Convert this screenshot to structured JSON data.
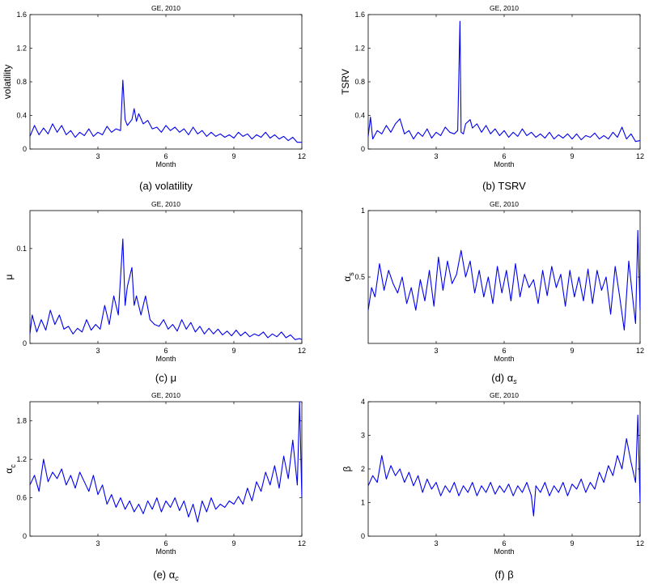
{
  "chart_data": [
    {
      "type": "line",
      "title": "GE, 2010",
      "xlabel": "Month",
      "ylabel": "volatility",
      "caption": "(a) volatility",
      "xlim": [
        0,
        12
      ],
      "ylim": [
        0,
        1.6
      ],
      "xticks": [
        "3",
        "6",
        "9",
        "12"
      ],
      "yticks": [
        "0",
        "0.4",
        "0.8",
        "1.2",
        "1.6"
      ],
      "line_color": "#0000ee",
      "series": [
        {
          "x": [
            0.0,
            0.2,
            0.4,
            0.6,
            0.8,
            1.0,
            1.2,
            1.4,
            1.6,
            1.8,
            2.0,
            2.2,
            2.4,
            2.6,
            2.8,
            3.0,
            3.2,
            3.4,
            3.6,
            3.8,
            4.0,
            4.1,
            4.2,
            4.3,
            4.5,
            4.6,
            4.7,
            4.8,
            5.0,
            5.2,
            5.4,
            5.6,
            5.8,
            6.0,
            6.2,
            6.4,
            6.6,
            6.8,
            7.0,
            7.2,
            7.4,
            7.6,
            7.8,
            8.0,
            8.2,
            8.4,
            8.6,
            8.8,
            9.0,
            9.2,
            9.4,
            9.6,
            9.8,
            10.0,
            10.2,
            10.4,
            10.6,
            10.8,
            11.0,
            11.2,
            11.4,
            11.6,
            11.8,
            12.0
          ],
          "values": [
            0.15,
            0.28,
            0.17,
            0.25,
            0.18,
            0.3,
            0.2,
            0.28,
            0.17,
            0.22,
            0.14,
            0.2,
            0.16,
            0.24,
            0.15,
            0.2,
            0.17,
            0.27,
            0.2,
            0.24,
            0.22,
            0.82,
            0.35,
            0.28,
            0.35,
            0.48,
            0.33,
            0.42,
            0.3,
            0.34,
            0.24,
            0.26,
            0.2,
            0.28,
            0.22,
            0.26,
            0.2,
            0.24,
            0.17,
            0.26,
            0.18,
            0.22,
            0.15,
            0.2,
            0.15,
            0.18,
            0.14,
            0.17,
            0.13,
            0.2,
            0.15,
            0.18,
            0.12,
            0.17,
            0.14,
            0.2,
            0.13,
            0.17,
            0.12,
            0.15,
            0.1,
            0.14,
            0.08,
            0.08
          ]
        }
      ]
    },
    {
      "type": "line",
      "title": "GE, 2010",
      "xlabel": "Month",
      "ylabel": "TSRV",
      "caption": "(b) TSRV",
      "xlim": [
        0,
        12
      ],
      "ylim": [
        0,
        1.6
      ],
      "xticks": [
        "3",
        "6",
        "9",
        "12"
      ],
      "yticks": [
        "0",
        "0.4",
        "0.8",
        "1.2",
        "1.6"
      ],
      "line_color": "#0000ee",
      "series": [
        {
          "x": [
            0.0,
            0.1,
            0.2,
            0.4,
            0.6,
            0.8,
            1.0,
            1.2,
            1.4,
            1.6,
            1.8,
            2.0,
            2.2,
            2.4,
            2.6,
            2.8,
            3.0,
            3.2,
            3.4,
            3.6,
            3.8,
            3.95,
            4.05,
            4.1,
            4.2,
            4.3,
            4.5,
            4.6,
            4.8,
            5.0,
            5.2,
            5.4,
            5.6,
            5.8,
            6.0,
            6.2,
            6.4,
            6.6,
            6.8,
            7.0,
            7.2,
            7.4,
            7.6,
            7.8,
            8.0,
            8.2,
            8.4,
            8.6,
            8.8,
            9.0,
            9.2,
            9.4,
            9.6,
            9.8,
            10.0,
            10.2,
            10.4,
            10.6,
            10.8,
            11.0,
            11.2,
            11.4,
            11.6,
            11.8,
            12.0
          ],
          "values": [
            0.15,
            0.38,
            0.12,
            0.22,
            0.18,
            0.28,
            0.2,
            0.3,
            0.36,
            0.18,
            0.22,
            0.12,
            0.2,
            0.15,
            0.24,
            0.13,
            0.2,
            0.16,
            0.26,
            0.2,
            0.18,
            0.22,
            1.52,
            0.2,
            0.18,
            0.3,
            0.35,
            0.25,
            0.3,
            0.2,
            0.28,
            0.18,
            0.24,
            0.16,
            0.22,
            0.14,
            0.2,
            0.15,
            0.24,
            0.16,
            0.2,
            0.14,
            0.18,
            0.13,
            0.2,
            0.12,
            0.17,
            0.13,
            0.18,
            0.12,
            0.18,
            0.11,
            0.16,
            0.14,
            0.19,
            0.12,
            0.16,
            0.12,
            0.2,
            0.14,
            0.26,
            0.12,
            0.18,
            0.09,
            0.1
          ]
        }
      ]
    },
    {
      "type": "line",
      "title": "GE, 2010",
      "xlabel": "Month",
      "ylabel": "μ",
      "caption": "(c) μ",
      "xlim": [
        0,
        12
      ],
      "ylim": [
        0,
        0.14
      ],
      "xticks": [
        "3",
        "6",
        "9",
        "12"
      ],
      "yticks": [
        "0",
        "0.1"
      ],
      "line_color": "#0000ee",
      "series": [
        {
          "x": [
            0.0,
            0.1,
            0.3,
            0.5,
            0.7,
            0.9,
            1.1,
            1.3,
            1.5,
            1.7,
            1.9,
            2.1,
            2.3,
            2.5,
            2.7,
            2.9,
            3.1,
            3.3,
            3.5,
            3.7,
            3.9,
            4.1,
            4.2,
            4.3,
            4.5,
            4.6,
            4.7,
            4.9,
            5.1,
            5.3,
            5.5,
            5.7,
            5.9,
            6.1,
            6.3,
            6.5,
            6.7,
            6.9,
            7.1,
            7.3,
            7.5,
            7.7,
            7.9,
            8.1,
            8.3,
            8.5,
            8.7,
            8.9,
            9.1,
            9.3,
            9.5,
            9.7,
            9.9,
            10.1,
            10.3,
            10.5,
            10.7,
            10.9,
            11.1,
            11.3,
            11.5,
            11.7,
            11.9,
            12.0
          ],
          "values": [
            0.01,
            0.03,
            0.012,
            0.025,
            0.014,
            0.035,
            0.02,
            0.03,
            0.015,
            0.018,
            0.01,
            0.016,
            0.012,
            0.025,
            0.014,
            0.02,
            0.015,
            0.04,
            0.02,
            0.05,
            0.03,
            0.11,
            0.04,
            0.06,
            0.08,
            0.04,
            0.05,
            0.03,
            0.05,
            0.025,
            0.02,
            0.018,
            0.025,
            0.015,
            0.02,
            0.013,
            0.025,
            0.015,
            0.022,
            0.012,
            0.018,
            0.01,
            0.016,
            0.01,
            0.015,
            0.009,
            0.013,
            0.008,
            0.014,
            0.008,
            0.012,
            0.007,
            0.01,
            0.008,
            0.012,
            0.006,
            0.01,
            0.007,
            0.012,
            0.006,
            0.009,
            0.004,
            0.005,
            0.004
          ]
        }
      ]
    },
    {
      "type": "line",
      "title": "GE, 2010",
      "xlabel": "Month",
      "ylabel": "αs",
      "caption": "(d) αs",
      "xlim": [
        0,
        12
      ],
      "ylim": [
        0,
        1
      ],
      "xticks": [
        "3",
        "6",
        "9",
        "12"
      ],
      "yticks": [
        "0.5",
        "1"
      ],
      "line_color": "#0000ee",
      "series": [
        {
          "x": [
            0.0,
            0.15,
            0.3,
            0.5,
            0.7,
            0.9,
            1.1,
            1.3,
            1.5,
            1.7,
            1.9,
            2.1,
            2.3,
            2.5,
            2.7,
            2.9,
            3.1,
            3.3,
            3.5,
            3.7,
            3.9,
            4.1,
            4.3,
            4.5,
            4.7,
            4.9,
            5.1,
            5.3,
            5.5,
            5.7,
            5.9,
            6.1,
            6.3,
            6.5,
            6.7,
            6.9,
            7.1,
            7.3,
            7.5,
            7.7,
            7.9,
            8.1,
            8.3,
            8.5,
            8.7,
            8.9,
            9.1,
            9.3,
            9.5,
            9.7,
            9.9,
            10.1,
            10.3,
            10.5,
            10.7,
            10.9,
            11.1,
            11.3,
            11.5,
            11.7,
            11.8,
            11.9,
            12.0
          ],
          "values": [
            0.25,
            0.42,
            0.35,
            0.6,
            0.4,
            0.55,
            0.45,
            0.38,
            0.5,
            0.3,
            0.42,
            0.25,
            0.48,
            0.32,
            0.55,
            0.28,
            0.65,
            0.4,
            0.62,
            0.45,
            0.52,
            0.7,
            0.5,
            0.62,
            0.38,
            0.55,
            0.35,
            0.5,
            0.3,
            0.58,
            0.38,
            0.55,
            0.32,
            0.6,
            0.35,
            0.52,
            0.42,
            0.48,
            0.3,
            0.55,
            0.36,
            0.58,
            0.42,
            0.52,
            0.28,
            0.55,
            0.35,
            0.5,
            0.32,
            0.56,
            0.3,
            0.55,
            0.4,
            0.5,
            0.22,
            0.58,
            0.35,
            0.1,
            0.62,
            0.3,
            0.15,
            0.85,
            0.25
          ]
        }
      ]
    },
    {
      "type": "line",
      "title": "GE, 2010",
      "xlabel": "Month",
      "ylabel": "αc",
      "caption": "(e) αc",
      "xlim": [
        0,
        12
      ],
      "ylim": [
        0,
        2.1
      ],
      "xticks": [
        "3",
        "6",
        "9",
        "12"
      ],
      "yticks": [
        "0",
        "0.6",
        "1.2",
        "1.8"
      ],
      "line_color": "#0000ee",
      "series": [
        {
          "x": [
            0.0,
            0.2,
            0.4,
            0.6,
            0.8,
            1.0,
            1.2,
            1.4,
            1.6,
            1.8,
            2.0,
            2.2,
            2.4,
            2.6,
            2.8,
            3.0,
            3.2,
            3.4,
            3.6,
            3.8,
            4.0,
            4.2,
            4.4,
            4.6,
            4.8,
            5.0,
            5.2,
            5.4,
            5.6,
            5.8,
            6.0,
            6.2,
            6.4,
            6.6,
            6.8,
            7.0,
            7.2,
            7.4,
            7.6,
            7.8,
            8.0,
            8.2,
            8.4,
            8.6,
            8.8,
            9.0,
            9.2,
            9.4,
            9.6,
            9.8,
            10.0,
            10.2,
            10.4,
            10.6,
            10.8,
            11.0,
            11.2,
            11.4,
            11.6,
            11.8,
            11.9,
            12.0
          ],
          "values": [
            0.8,
            0.95,
            0.7,
            1.2,
            0.85,
            1.0,
            0.9,
            1.05,
            0.8,
            0.95,
            0.75,
            1.0,
            0.85,
            0.7,
            0.95,
            0.65,
            0.8,
            0.5,
            0.65,
            0.45,
            0.6,
            0.42,
            0.55,
            0.38,
            0.5,
            0.35,
            0.55,
            0.42,
            0.6,
            0.38,
            0.55,
            0.45,
            0.6,
            0.4,
            0.55,
            0.3,
            0.5,
            0.22,
            0.55,
            0.38,
            0.6,
            0.42,
            0.5,
            0.45,
            0.55,
            0.5,
            0.62,
            0.5,
            0.75,
            0.55,
            0.85,
            0.7,
            1.0,
            0.8,
            1.1,
            0.75,
            1.25,
            0.9,
            1.5,
            0.8,
            2.1,
            0.6
          ]
        }
      ]
    },
    {
      "type": "line",
      "title": "GE, 2010",
      "xlabel": "Month",
      "ylabel": "β",
      "caption": "(f) β",
      "xlim": [
        0,
        12
      ],
      "ylim": [
        0,
        4
      ],
      "xticks": [
        "3",
        "6",
        "9",
        "12"
      ],
      "yticks": [
        "0",
        "1",
        "2",
        "3",
        "4"
      ],
      "line_color": "#0000ee",
      "series": [
        {
          "x": [
            0.0,
            0.2,
            0.4,
            0.6,
            0.8,
            1.0,
            1.2,
            1.4,
            1.6,
            1.8,
            2.0,
            2.2,
            2.4,
            2.6,
            2.8,
            3.0,
            3.2,
            3.4,
            3.6,
            3.8,
            4.0,
            4.2,
            4.4,
            4.6,
            4.8,
            5.0,
            5.2,
            5.4,
            5.6,
            5.8,
            6.0,
            6.2,
            6.4,
            6.6,
            6.8,
            7.0,
            7.2,
            7.3,
            7.4,
            7.6,
            7.8,
            8.0,
            8.2,
            8.4,
            8.6,
            8.8,
            9.0,
            9.2,
            9.4,
            9.6,
            9.8,
            10.0,
            10.2,
            10.4,
            10.6,
            10.8,
            11.0,
            11.2,
            11.4,
            11.6,
            11.8,
            11.9,
            12.0
          ],
          "values": [
            1.5,
            1.8,
            1.6,
            2.4,
            1.7,
            2.1,
            1.8,
            2.0,
            1.6,
            1.9,
            1.5,
            1.8,
            1.3,
            1.7,
            1.4,
            1.6,
            1.2,
            1.5,
            1.3,
            1.6,
            1.2,
            1.5,
            1.3,
            1.6,
            1.2,
            1.5,
            1.3,
            1.6,
            1.25,
            1.5,
            1.3,
            1.55,
            1.2,
            1.5,
            1.3,
            1.6,
            1.2,
            0.6,
            1.5,
            1.3,
            1.6,
            1.2,
            1.5,
            1.3,
            1.6,
            1.2,
            1.55,
            1.4,
            1.7,
            1.3,
            1.6,
            1.4,
            1.9,
            1.6,
            2.1,
            1.8,
            2.4,
            2.0,
            2.9,
            2.2,
            1.6,
            3.6,
            1.0
          ]
        }
      ]
    }
  ]
}
